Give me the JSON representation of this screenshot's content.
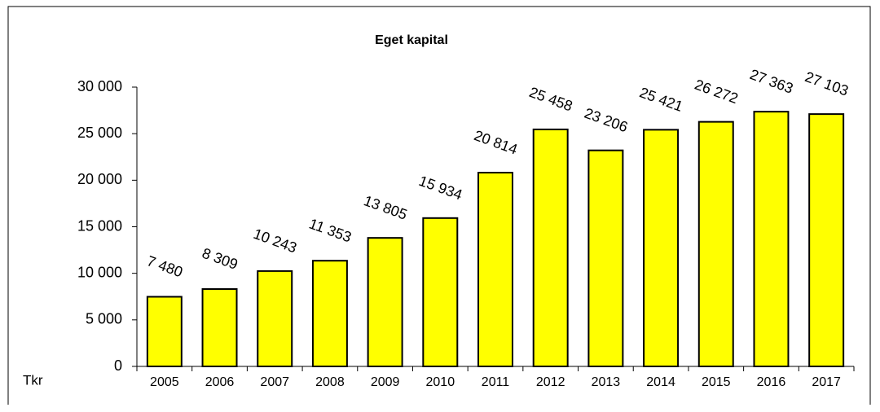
{
  "chart_data": {
    "type": "bar",
    "title": "Eget kapital",
    "y_label": "Tkr",
    "categories": [
      "2005",
      "2006",
      "2007",
      "2008",
      "2009",
      "2010",
      "2011",
      "2012",
      "2013",
      "2014",
      "2015",
      "2016",
      "2017"
    ],
    "values": [
      7480,
      8309,
      10243,
      11353,
      13805,
      15934,
      20814,
      25458,
      23206,
      25421,
      26272,
      27363,
      27103
    ],
    "value_labels": [
      "7 480",
      "8 309",
      "10 243",
      "11 353",
      "13 805",
      "15 934",
      "20 814",
      "25 458",
      "23 206",
      "25 421",
      "26 272",
      "27 363",
      "27 103"
    ],
    "color": "#ffff00",
    "ylim": [
      0,
      30000
    ],
    "yticks": [
      {
        "value": 0,
        "label": "0"
      },
      {
        "value": 5000,
        "label": "5 000"
      },
      {
        "value": 10000,
        "label": "10 000"
      },
      {
        "value": 15000,
        "label": "15 000"
      },
      {
        "value": 20000,
        "label": "20 000"
      },
      {
        "value": 25000,
        "label": "25 000"
      },
      {
        "value": 30000,
        "label": "30 000"
      }
    ],
    "grid": false
  }
}
